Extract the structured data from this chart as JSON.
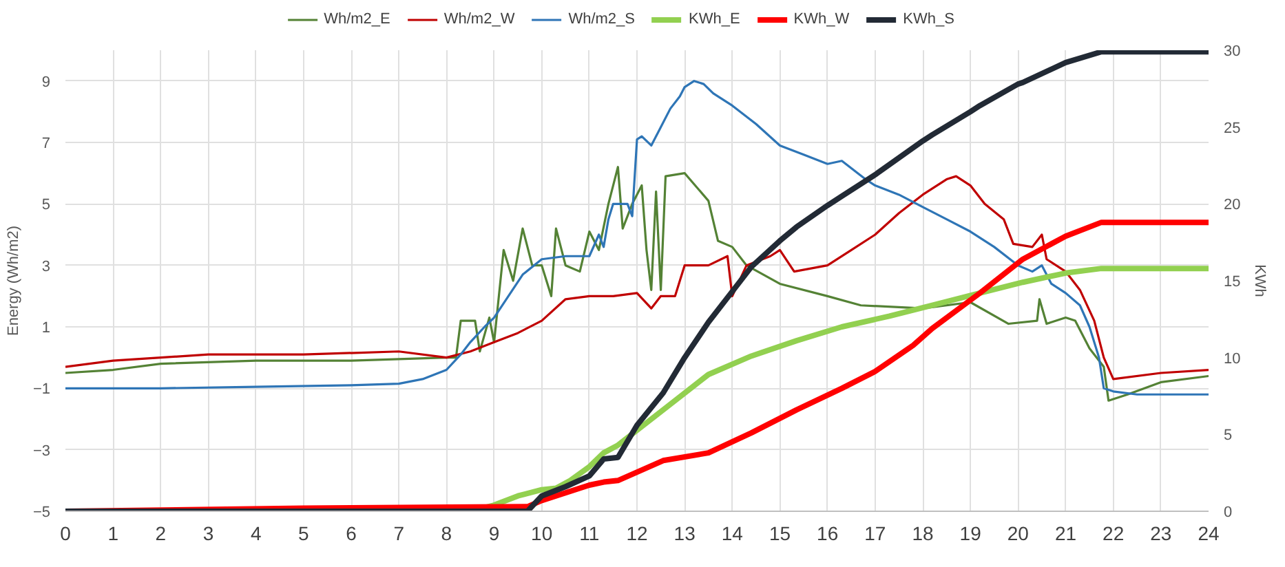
{
  "chart_data": {
    "type": "line",
    "ylabel": "Energy (Wh/m2)",
    "y2label": "KWh",
    "xlim": [
      0,
      24
    ],
    "xticks": [
      0,
      1,
      2,
      3,
      4,
      5,
      6,
      7,
      8,
      9,
      10,
      11,
      12,
      13,
      14,
      15,
      16,
      17,
      18,
      19,
      20,
      21,
      22,
      23,
      24
    ],
    "ylim": [
      -5,
      10
    ],
    "yticks": [
      -5,
      -3,
      -1,
      1,
      3,
      5,
      7,
      9
    ],
    "y2lim": [
      0,
      30
    ],
    "y2ticks": [
      0,
      5,
      10,
      15,
      20,
      25,
      30
    ],
    "grid": true,
    "legend": "top",
    "series": [
      {
        "name": "Wh/m2_E",
        "color": "#548235",
        "x": [
          0,
          1,
          2,
          4,
          6,
          8,
          8.2,
          8.3,
          8.6,
          8.7,
          8.9,
          9.0,
          9.2,
          9.4,
          9.6,
          9.8,
          10,
          10.2,
          10.3,
          10.5,
          10.8,
          11.0,
          11.2,
          11.4,
          11.6,
          11.7,
          11.9,
          12.1,
          12.2,
          12.3,
          12.4,
          12.5,
          12.6,
          13.0,
          13.5,
          13.7,
          14,
          14.3,
          15,
          16,
          16.7,
          18,
          19,
          19.8,
          20.4,
          20.45,
          20.6,
          21,
          21.2,
          21.5,
          21.8,
          21.9,
          22.3,
          23,
          24
        ],
        "values": [
          -0.5,
          -0.4,
          -0.2,
          -0.1,
          -0.1,
          0,
          0,
          1.2,
          1.2,
          0.2,
          1.3,
          0.5,
          3.5,
          2.5,
          4.2,
          3.0,
          3.0,
          2.0,
          4.2,
          3.0,
          2.8,
          4.1,
          3.5,
          5.0,
          6.2,
          4.2,
          5.0,
          5.6,
          3.5,
          2.2,
          5.4,
          2.2,
          5.9,
          6.0,
          5.1,
          3.8,
          3.6,
          3.0,
          2.4,
          2.0,
          1.7,
          1.6,
          1.8,
          1.1,
          1.2,
          1.9,
          1.1,
          1.3,
          1.2,
          0.3,
          -0.3,
          -1.4,
          -1.2,
          -0.8,
          -0.6
        ]
      },
      {
        "name": "Wh/m2_W",
        "color": "#c00000",
        "x": [
          0,
          1,
          2,
          3,
          5,
          7,
          8,
          8.5,
          9,
          9.5,
          10,
          10.5,
          11,
          11.5,
          12,
          12.3,
          12.5,
          12.8,
          13,
          13.5,
          13.9,
          14.0,
          14.3,
          14.8,
          15.0,
          15.3,
          16,
          16.5,
          17,
          17.5,
          18,
          18.5,
          18.7,
          19,
          19.3,
          19.7,
          19.9,
          20.3,
          20.5,
          20.6,
          21,
          21.3,
          21.6,
          21.8,
          22.0,
          23,
          24
        ],
        "values": [
          -0.3,
          -0.1,
          0.0,
          0.1,
          0.1,
          0.2,
          0,
          0.2,
          0.5,
          0.8,
          1.2,
          1.9,
          2.0,
          2.0,
          2.1,
          1.6,
          2.0,
          2.0,
          3.0,
          3.0,
          3.3,
          2.0,
          3.0,
          3.3,
          3.5,
          2.8,
          3.0,
          3.5,
          4.0,
          4.7,
          5.3,
          5.8,
          5.9,
          5.6,
          5.0,
          4.5,
          3.7,
          3.6,
          4.0,
          3.2,
          2.8,
          2.2,
          1.2,
          0.0,
          -0.7,
          -0.5,
          -0.4
        ]
      },
      {
        "name": "Wh/m2_S",
        "color": "#2e75b6",
        "x": [
          0,
          2,
          4,
          6,
          7,
          7.5,
          8,
          8.3,
          8.5,
          8.8,
          9,
          9.3,
          9.6,
          10,
          10.5,
          11,
          11.2,
          11.3,
          11.4,
          11.5,
          11.8,
          11.9,
          12.0,
          12.1,
          12.3,
          12.5,
          12.7,
          12.9,
          13.0,
          13.2,
          13.4,
          13.6,
          14,
          14.5,
          15,
          15.5,
          16,
          16.3,
          16.8,
          17,
          17.5,
          18,
          18.5,
          19,
          19.5,
          20,
          20.3,
          20.5,
          20.7,
          21,
          21.3,
          21.5,
          21.7,
          21.8,
          22.0,
          22.5,
          23,
          24
        ],
        "values": [
          -1.0,
          -1.0,
          -0.95,
          -0.9,
          -0.85,
          -0.7,
          -0.4,
          0.1,
          0.5,
          1.0,
          1.3,
          2.0,
          2.7,
          3.2,
          3.3,
          3.3,
          4.0,
          3.6,
          4.5,
          5.0,
          5.0,
          4.6,
          7.1,
          7.2,
          6.9,
          7.5,
          8.1,
          8.5,
          8.8,
          9.0,
          8.9,
          8.6,
          8.2,
          7.6,
          6.9,
          6.6,
          6.3,
          6.4,
          5.8,
          5.6,
          5.3,
          4.9,
          4.5,
          4.1,
          3.6,
          3.0,
          2.8,
          3.0,
          2.4,
          2.1,
          1.7,
          1.0,
          0.0,
          -1.0,
          -1.1,
          -1.2,
          -1.2,
          -1.2
        ]
      },
      {
        "name": "KWh_E",
        "color": "#92d050",
        "axis": "y2",
        "x": [
          0,
          8.5,
          9,
          9.5,
          10,
          10.3,
          10.6,
          11,
          11.3,
          11.6,
          12.55,
          13.5,
          14.4,
          15.35,
          16.3,
          17.3,
          18.2,
          19.2,
          20.1,
          21.0,
          21.75,
          24
        ],
        "values": [
          0,
          0,
          0.4,
          1.0,
          1.4,
          1.5,
          2.0,
          2.9,
          3.8,
          4.3,
          6.6,
          8.9,
          10.1,
          11.1,
          12.0,
          12.7,
          13.4,
          14.2,
          14.9,
          15.5,
          15.8,
          15.8
        ]
      },
      {
        "name": "KWh_W",
        "color": "#ff0000",
        "axis": "y2",
        "x": [
          0,
          5,
          9.7,
          10,
          11,
          11.3,
          11.6,
          12.55,
          13.5,
          14.4,
          15.35,
          16.3,
          17.0,
          17.8,
          18.2,
          19.2,
          20.1,
          21.0,
          21.75,
          24
        ],
        "values": [
          0,
          0.2,
          0.3,
          0.7,
          1.7,
          1.9,
          2.0,
          3.3,
          3.8,
          5.1,
          6.6,
          8.0,
          9.1,
          10.8,
          11.9,
          14.2,
          16.4,
          17.9,
          18.8,
          18.8
        ]
      },
      {
        "name": "KWh_S",
        "color": "#222a35",
        "axis": "y2",
        "x": [
          0,
          9.7,
          10,
          10.5,
          11,
          11.3,
          11.6,
          12,
          12.55,
          13,
          13.5,
          14,
          14.4,
          15,
          15.35,
          16,
          16.3,
          17,
          18,
          18.2,
          19,
          19.2,
          20,
          20.1,
          21,
          21.75,
          24
        ],
        "values": [
          0,
          0,
          1.0,
          1.6,
          2.3,
          3.4,
          3.5,
          5.6,
          7.7,
          10.0,
          12.3,
          14.3,
          15.9,
          17.6,
          18.5,
          19.9,
          20.5,
          21.9,
          24.1,
          24.5,
          26.0,
          26.4,
          27.8,
          27.9,
          29.2,
          29.9,
          29.9
        ]
      }
    ]
  }
}
